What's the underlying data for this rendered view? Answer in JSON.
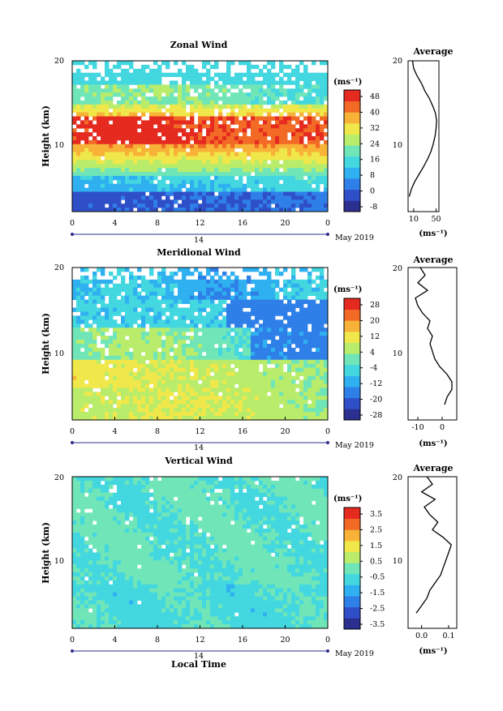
{
  "colors": {
    "palette": [
      "#2b2f8f",
      "#2f4fc8",
      "#2f7fe8",
      "#2fb0f0",
      "#43d7e0",
      "#70e6b8",
      "#b8ec6a",
      "#f0e84a",
      "#f7b237",
      "#f26a26",
      "#e52a20"
    ]
  },
  "chart_data": [
    {
      "type": "heatmap",
      "title": "Zonal Wind",
      "ylabel": "Height (km)",
      "xlabel": "",
      "x_ticks": [
        "0",
        "4",
        "8",
        "12",
        "16",
        "20",
        "0"
      ],
      "y_ticks": [
        "20",
        "10"
      ],
      "date_marker": "14",
      "date_label": "May 2019",
      "colorbar": {
        "unit": "(ms⁻¹)",
        "ticks": [
          "48",
          "40",
          "32",
          "24",
          "16",
          "8",
          "0",
          "-8"
        ],
        "range": [
          -8,
          50
        ]
      },
      "profile": {
        "title": "Average",
        "x_ticks": [
          "10",
          "50"
        ],
        "xlim": [
          0,
          55
        ],
        "unit": "(ms⁻¹)",
        "height": [
          2,
          3,
          4,
          5,
          6,
          7,
          8,
          9,
          10,
          11,
          12,
          13,
          14,
          15,
          16,
          17,
          18,
          19,
          20
        ],
        "values": [
          2,
          6,
          12,
          20,
          28,
          35,
          41,
          45,
          48,
          50,
          51,
          49,
          44,
          38,
          30,
          24,
          16,
          10,
          8
        ]
      }
    },
    {
      "type": "heatmap",
      "title": "Meridional Wind",
      "ylabel": "Height (km)",
      "xlabel": "",
      "x_ticks": [
        "0",
        "4",
        "8",
        "12",
        "16",
        "20",
        "0"
      ],
      "y_ticks": [
        "20",
        "10"
      ],
      "date_marker": "14",
      "date_label": "May 2019",
      "colorbar": {
        "unit": "(ms⁻¹)",
        "ticks": [
          "28",
          "20",
          "12",
          "4",
          "-4",
          "-12",
          "-20",
          "-28"
        ],
        "range": [
          -28,
          28
        ]
      },
      "profile": {
        "title": "Average",
        "x_ticks": [
          "-10",
          "0"
        ],
        "xlim": [
          -14,
          6
        ],
        "unit": "(ms⁻¹)",
        "height": [
          2,
          3,
          4,
          5,
          6,
          7,
          8,
          9,
          10,
          11,
          12,
          13,
          14,
          15,
          16,
          17,
          18,
          19,
          20
        ],
        "values": [
          1,
          2,
          4,
          4,
          2,
          -1,
          -3,
          -4,
          -5,
          -4,
          -6,
          -5,
          -8,
          -10,
          -11,
          -6,
          -10,
          -7,
          -9
        ]
      }
    },
    {
      "type": "heatmap",
      "title": "Vertical Wind",
      "ylabel": "Height (km)",
      "xlabel": "Local Time",
      "x_ticks": [
        "0",
        "4",
        "8",
        "12",
        "16",
        "20",
        "0"
      ],
      "y_ticks": [
        "20",
        "10"
      ],
      "date_marker": "14",
      "date_label": "May 2019",
      "colorbar": {
        "unit": "(ms⁻¹)",
        "ticks": [
          "3.5",
          "2.5",
          "1.5",
          "0.5",
          "-0.5",
          "-1.5",
          "-2.5",
          "-3.5"
        ],
        "range": [
          -4,
          4
        ]
      },
      "profile": {
        "title": "Average",
        "x_ticks": [
          "0.0",
          "0.1"
        ],
        "xlim": [
          -0.05,
          0.13
        ],
        "unit": "(ms⁻¹)",
        "height": [
          2,
          3,
          4,
          5,
          6,
          7,
          8,
          9,
          10,
          11,
          12,
          13,
          14,
          15,
          16,
          17,
          18,
          19,
          20
        ],
        "values": [
          -0.02,
          0.0,
          0.02,
          0.03,
          0.05,
          0.07,
          0.08,
          0.09,
          0.1,
          0.11,
          0.08,
          0.04,
          0.06,
          0.03,
          0.01,
          0.05,
          0.0,
          0.04,
          0.02
        ]
      }
    }
  ]
}
